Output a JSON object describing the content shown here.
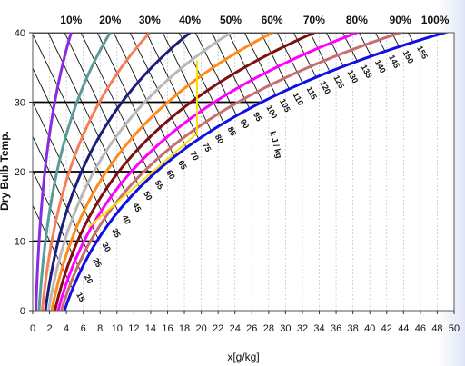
{
  "chart_data": {
    "type": "line",
    "title": "",
    "xlabel": "x[g/kg]",
    "ylabel": "Dry Bulb Temp.",
    "xlim": [
      0,
      50
    ],
    "ylim": [
      0,
      40
    ],
    "x_ticks": [
      "0",
      "2",
      "4",
      "6",
      "8",
      "10",
      "12",
      "14",
      "16",
      "18",
      "20",
      "22",
      "24",
      "26",
      "28",
      "30",
      "32",
      "34",
      "36",
      "38",
      "40",
      "42",
      "44",
      "46",
      "48",
      "50"
    ],
    "y_ticks": [
      "0",
      "10",
      "20",
      "30",
      "40"
    ],
    "grid": true,
    "relative_humidity_curves": [
      {
        "name": "10%",
        "rh": 0.1,
        "color": "#8a2be2"
      },
      {
        "name": "20%",
        "rh": 0.2,
        "color": "#5a9a98"
      },
      {
        "name": "30%",
        "rh": 0.3,
        "color": "#f4805a"
      },
      {
        "name": "40%",
        "rh": 0.4,
        "color": "#1c1c7a"
      },
      {
        "name": "50%",
        "rh": 0.5,
        "color": "#b8b8b8"
      },
      {
        "name": "60%",
        "rh": 0.6,
        "color": "#ff8c1a"
      },
      {
        "name": "70%",
        "rh": 0.7,
        "color": "#7a1010"
      },
      {
        "name": "80%",
        "rh": 0.8,
        "color": "#ff00ff"
      },
      {
        "name": "90%",
        "rh": 0.9,
        "color": "#c46e6e"
      },
      {
        "name": "100%",
        "rh": 1.0,
        "color": "#1010e0"
      }
    ],
    "enthalpy_lines": [
      "15",
      "20",
      "25",
      "30",
      "35",
      "40",
      "45",
      "50",
      "55",
      "60",
      "65",
      "70",
      "75",
      "80",
      "85",
      "90",
      "95",
      "100",
      "105",
      "110",
      "115",
      "120",
      "125",
      "130",
      "135",
      "140",
      "145",
      "150",
      "155"
    ],
    "enthalpy_unit": "k J / kg",
    "constant_temperature_lines": [
      10,
      20,
      30,
      40
    ],
    "highlight_paths": [
      {
        "color": "#ffe000",
        "points": [
          [
            6.6,
            12
          ],
          [
            19.5,
            25.5
          ],
          [
            19.5,
            36
          ]
        ]
      }
    ]
  }
}
